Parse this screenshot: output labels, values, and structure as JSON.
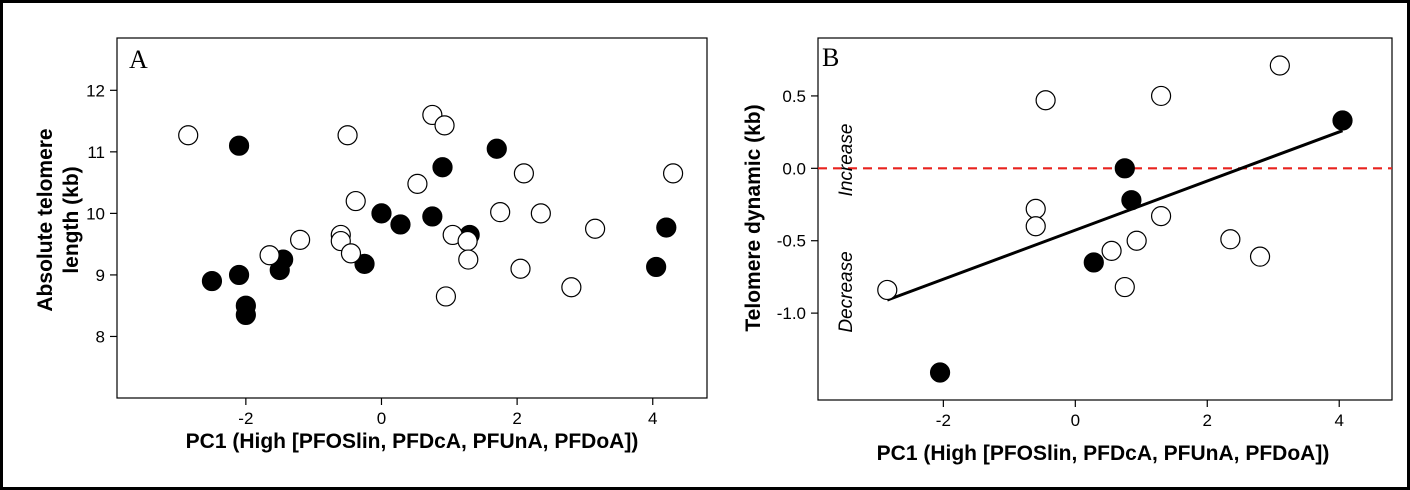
{
  "chart_data": [
    {
      "type": "scatter",
      "panel_label": "A",
      "xlabel": "PC1 (High [PFOSlin, PFDcA, PFUnA, PFDoA])",
      "ylabel_lines": [
        "Absolute telomere",
        "length (kb)"
      ],
      "xlim": [
        -3.9,
        4.8
      ],
      "ylim": [
        7.0,
        12.85
      ],
      "xticks": [
        -2,
        0,
        2,
        4
      ],
      "yticks": [
        8,
        9,
        10,
        11,
        12
      ],
      "grid": false,
      "series": [
        {
          "marker": "filled",
          "points": [
            [
              -2.1,
              11.1
            ],
            [
              -2.5,
              8.9
            ],
            [
              -2.1,
              9.0
            ],
            [
              -2.0,
              8.5
            ],
            [
              -2.0,
              8.35
            ],
            [
              -1.45,
              9.25
            ],
            [
              -1.5,
              9.08
            ],
            [
              -0.25,
              9.18
            ],
            [
              0.0,
              10.0
            ],
            [
              0.28,
              9.82
            ],
            [
              0.75,
              9.95
            ],
            [
              0.9,
              10.75
            ],
            [
              1.3,
              9.65
            ],
            [
              1.7,
              11.05
            ],
            [
              4.05,
              9.13
            ],
            [
              4.2,
              9.77
            ]
          ]
        },
        {
          "marker": "open",
          "points": [
            [
              -2.85,
              11.27
            ],
            [
              -0.5,
              11.27
            ],
            [
              0.75,
              11.6
            ],
            [
              0.93,
              11.43
            ],
            [
              -1.2,
              9.57
            ],
            [
              -1.65,
              9.32
            ],
            [
              -0.6,
              9.65
            ],
            [
              -0.6,
              9.55
            ],
            [
              -0.45,
              9.35
            ],
            [
              -0.38,
              10.2
            ],
            [
              0.53,
              10.48
            ],
            [
              1.05,
              9.65
            ],
            [
              1.27,
              9.55
            ],
            [
              1.28,
              9.25
            ],
            [
              0.95,
              8.65
            ],
            [
              1.75,
              10.02
            ],
            [
              2.1,
              10.65
            ],
            [
              2.35,
              10.0
            ],
            [
              2.05,
              9.1
            ],
            [
              2.8,
              8.8
            ],
            [
              3.15,
              9.75
            ],
            [
              4.3,
              10.65
            ]
          ]
        }
      ]
    },
    {
      "type": "scatter",
      "panel_label": "B",
      "xlabel": "PC1 (High [PFOSlin, PFDcA, PFUnA, PFDoA])",
      "ylabel": "Telomere dynamic (kb)",
      "xlim": [
        -3.9,
        4.8
      ],
      "ylim": [
        -1.6,
        0.9
      ],
      "xticks": [
        -2,
        0,
        2,
        4
      ],
      "yticks": [
        -1.0,
        -0.5,
        0.0,
        0.5
      ],
      "ytick_labels": [
        "-1.0",
        "-0.5",
        "0.0",
        "0.5"
      ],
      "grid": false,
      "annotations": {
        "above": "Increase",
        "below": "Decrease"
      },
      "reference_line": {
        "y": 0.0,
        "style": "dashed",
        "color": "#e8231f"
      },
      "regression_line": {
        "x": [
          -2.85,
          4.05
        ],
        "y": [
          -0.91,
          0.26
        ]
      },
      "series": [
        {
          "marker": "filled",
          "points": [
            [
              -2.05,
              -1.41
            ],
            [
              0.28,
              -0.65
            ],
            [
              0.75,
              0.0
            ],
            [
              0.85,
              -0.22
            ],
            [
              4.05,
              0.33
            ]
          ]
        },
        {
          "marker": "open",
          "points": [
            [
              -2.85,
              -0.84
            ],
            [
              -0.6,
              -0.28
            ],
            [
              -0.6,
              -0.4
            ],
            [
              -0.45,
              0.47
            ],
            [
              0.55,
              -0.57
            ],
            [
              0.75,
              -0.82
            ],
            [
              0.93,
              -0.5
            ],
            [
              1.3,
              -0.33
            ],
            [
              1.3,
              0.5
            ],
            [
              2.35,
              -0.49
            ],
            [
              2.8,
              -0.61
            ],
            [
              3.1,
              0.71
            ]
          ]
        }
      ]
    }
  ]
}
